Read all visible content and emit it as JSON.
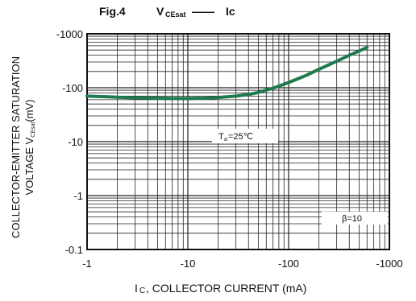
{
  "figure": {
    "fig_label": "Fig.4",
    "title_v": "V",
    "title_v_sub": "CEsat",
    "title_dash": "——",
    "title_ic": "Ic"
  },
  "y_label": {
    "line1": "COLLECTOR-EMITTER SATURATION",
    "line2_prefix": "VOLTAGE V",
    "line2_sub": "CEsat",
    "line2_suffix": "(mV)"
  },
  "x_label": {
    "prefix": "I",
    "sub": "C",
    "text": " , COLLECTOR CURRENT (mA)"
  },
  "annotations": {
    "ta_prefix": "T",
    "ta_sub": "a",
    "ta_suffix": "=25℃",
    "beta": "β=10"
  },
  "chart_data": {
    "type": "line",
    "xscale": "log",
    "yscale": "log",
    "xlim": [
      -1,
      -1000
    ],
    "ylim": [
      -0.1,
      -1000
    ],
    "x_ticks": [
      "-1",
      "-10",
      "-100",
      "-1000"
    ],
    "y_ticks": [
      "-0.1",
      "-1",
      "-10",
      "-100",
      "-1000"
    ],
    "grid": true,
    "series": [
      {
        "color": "#1f7a4d",
        "x": [
          -1,
          -2,
          -3,
          -5,
          -7,
          -10,
          -15,
          -20,
          -30,
          -40,
          -50,
          -70,
          -100,
          -150,
          -200,
          -300,
          -400,
          -500,
          -600
        ],
        "y": [
          -70,
          -67,
          -65,
          -64,
          -63,
          -63,
          -64,
          -66,
          -70,
          -75,
          -82,
          -98,
          -125,
          -170,
          -220,
          -310,
          -400,
          -480,
          -560
        ]
      }
    ]
  }
}
